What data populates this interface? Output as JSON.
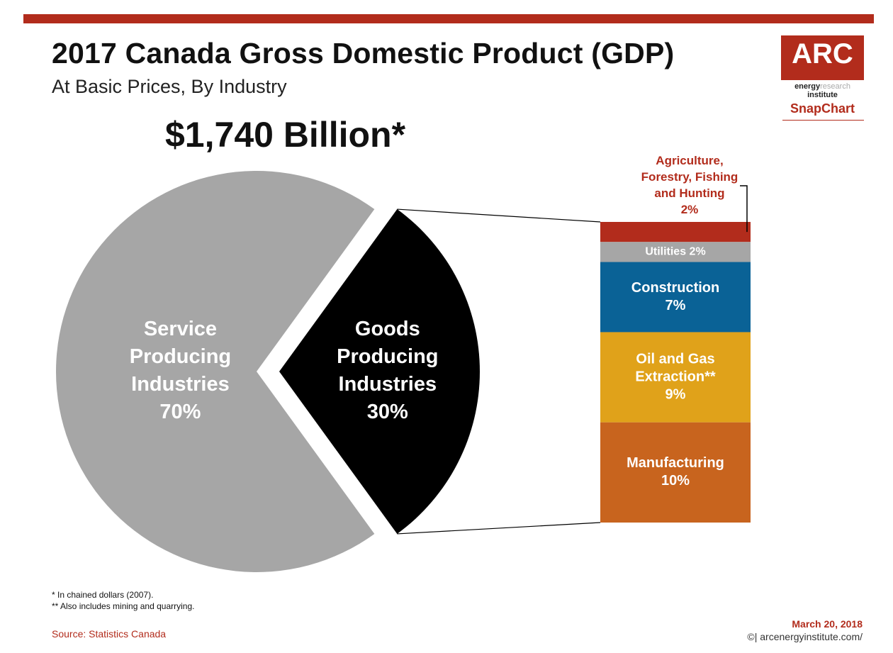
{
  "title": "2017 Canada Gross Domestic Product (GDP)",
  "subtitle": "At Basic Prices, By Industry",
  "total": "$1,740 Billion*",
  "logo": {
    "brand": "ARC",
    "line1_bold": "energy",
    "line1_light": "research",
    "line2": "institute",
    "product": "SnapChart"
  },
  "footnotes": [
    "* In chained dollars (2007).",
    "** Also includes mining and quarrying."
  ],
  "source": "Source: Statistics Canada",
  "date": "March 20, 2018",
  "credit": "©| arcenergyinstitute.com/",
  "colors": {
    "accent": "#b22c1c",
    "service": "#a6a6a6",
    "goods": "#000000"
  },
  "chart_data": {
    "type": "pie",
    "slices": [
      {
        "label_lines": [
          "Service",
          "Producing",
          "Industries",
          "70%"
        ],
        "name": "Service Producing Industries",
        "value": 70,
        "color": "#a6a6a6"
      },
      {
        "label_lines": [
          "Goods",
          "Producing",
          "Industries",
          "30%"
        ],
        "name": "Goods Producing Industries",
        "value": 30,
        "color": "#000000",
        "exploded": true
      }
    ],
    "breakdown": {
      "type": "stacked_bar",
      "of": "Goods Producing Industries",
      "segments": [
        {
          "name": "Agriculture, Forestry, Fishing and Hunting",
          "label_lines": [
            "Agriculture,",
            "Forestry, Fishing",
            "and Hunting",
            "2%"
          ],
          "value": 2,
          "color": "#b22c1c",
          "label_outside": true
        },
        {
          "name": "Utilities",
          "label_lines": [
            "Utilities  2%"
          ],
          "value": 2,
          "color": "#a6a6a6"
        },
        {
          "name": "Construction",
          "label_lines": [
            "Construction",
            "7%"
          ],
          "value": 7,
          "color": "#0a6296"
        },
        {
          "name": "Oil and Gas Extraction**",
          "label_lines": [
            "Oil and Gas",
            "Extraction**",
            "9%"
          ],
          "value": 9,
          "color": "#e0a21a"
        },
        {
          "name": "Manufacturing",
          "label_lines": [
            "Manufacturing",
            "10%"
          ],
          "value": 10,
          "color": "#c8641e"
        }
      ]
    }
  }
}
